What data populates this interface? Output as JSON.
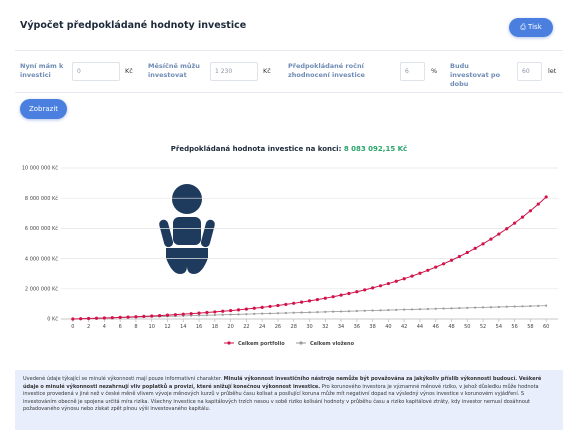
{
  "header": {
    "title": "Výpočet předpokládané hodnoty investice",
    "print": "Tisk"
  },
  "form": {
    "fields": [
      {
        "label": "Nyní mám k investici",
        "value": "0",
        "unit": "Kč"
      },
      {
        "label": "Měsíčně můžu investovat",
        "value": "1 230",
        "unit": "Kč"
      },
      {
        "label": "Předpokládané roční zhodnocení investice",
        "value": "6",
        "unit": "%"
      },
      {
        "label": "Budu investovat po dobu",
        "value": "60",
        "unit": "let"
      }
    ],
    "submit": "Zobrazit"
  },
  "chart_data": {
    "type": "line",
    "title": "Předpokládaná hodnota investice na konci:",
    "total_label": "8 083 092,15 Kč",
    "x": [
      0,
      1,
      2,
      3,
      4,
      5,
      6,
      7,
      8,
      9,
      10,
      11,
      12,
      13,
      14,
      15,
      16,
      17,
      18,
      19,
      20,
      21,
      22,
      23,
      24,
      25,
      26,
      27,
      28,
      29,
      30,
      31,
      32,
      33,
      34,
      35,
      36,
      37,
      38,
      39,
      40,
      41,
      42,
      43,
      44,
      45,
      46,
      47,
      48,
      49,
      50,
      51,
      52,
      53,
      54,
      55,
      56,
      57,
      58,
      59,
      60
    ],
    "xlim": [
      -1.5,
      61.5
    ],
    "xticks": [
      0,
      2,
      4,
      6,
      8,
      10,
      12,
      14,
      16,
      18,
      20,
      22,
      24,
      26,
      28,
      30,
      32,
      34,
      36,
      38,
      40,
      42,
      44,
      46,
      48,
      50,
      52,
      54,
      56,
      58,
      60
    ],
    "ylim": [
      0,
      10000000
    ],
    "yticks": [
      {
        "value": 0,
        "label": "0 Kč"
      },
      {
        "value": 2000000,
        "label": "2 000 000 Kč"
      },
      {
        "value": 4000000,
        "label": "4 000 000 Kč"
      },
      {
        "value": 6000000,
        "label": "6 000 000 Kč"
      },
      {
        "value": 8000000,
        "label": "8 000 000 Kč"
      },
      {
        "value": 10000000,
        "label": "10 000 000 Kč"
      }
    ],
    "grid": true,
    "series": [
      {
        "name": "Celkem portfolio",
        "color": "#d0144a",
        "values": [
          0,
          15000,
          31000,
          48000,
          66000,
          85000,
          106000,
          127000,
          150000,
          174000,
          200000,
          227000,
          256000,
          286000,
          319000,
          353000,
          389000,
          428000,
          469000,
          512000,
          558000,
          606000,
          658000,
          713000,
          770000,
          832000,
          897000,
          966000,
          1039000,
          1116000,
          1199000,
          1286000,
          1378000,
          1476000,
          1580000,
          1690000,
          1806000,
          1930000,
          2061000,
          2199000,
          2346000,
          2502000,
          2668000,
          2843000,
          3029000,
          3225000,
          3434000,
          3655000,
          3890000,
          4138000,
          4402000,
          4681000,
          4977000,
          5291000,
          5624000,
          5976000,
          6350000,
          6746000,
          7166000,
          7611000,
          8083092
        ]
      },
      {
        "name": "Celkem vloženo",
        "color": "#9a9a9a",
        "values": [
          0,
          14760,
          29520,
          44280,
          59040,
          73800,
          88560,
          103320,
          118080,
          132840,
          147600,
          162360,
          177120,
          191880,
          206640,
          221400,
          236160,
          250920,
          265680,
          280440,
          295200,
          309960,
          324720,
          339480,
          354240,
          369000,
          383760,
          398520,
          413280,
          428040,
          442800,
          457560,
          472320,
          487080,
          501840,
          516600,
          531360,
          546120,
          560880,
          575640,
          590400,
          605160,
          619920,
          634680,
          649440,
          664200,
          678960,
          693720,
          708480,
          723240,
          738000,
          752760,
          767520,
          782280,
          797040,
          811800,
          826560,
          841320,
          856080,
          870840,
          885600
        ]
      }
    ]
  },
  "disclaimer": {
    "text_1": "Uvedené údaje týkající se minulé výkonnosti mají pouze informativní charakter. ",
    "bold": "Minulá výkonnost investičního nástroje nemůže být považována za jakýkoliv příslib výkonnosti budoucí. Veškeré údaje o minulé výkonnosti nezahrnují vliv poplatků a provizí, které snižují konečnou výkonnost investice.",
    "text_2": " Pro korunového investora je významné měnové riziko, v jehož důsledku může hodnota investice provedená v jiné než v české měně vlivem vývoje měnových kurzů v průběhu času kolísat a posilující koruna může mít negativní dopad na výsledný výnos investice v korunovém vyjádření. S investováním obecně je spojena určitá míra rizika. Všechny investice na kapitálových trzích nesou v sobě riziko kolísání hodnoty v průběhu času a riziko kapitálové ztráty, kdy investor nemusí dosáhnout požadovaného výnosu nebo získat zpět plnou výši investovaného kapitálu."
  }
}
